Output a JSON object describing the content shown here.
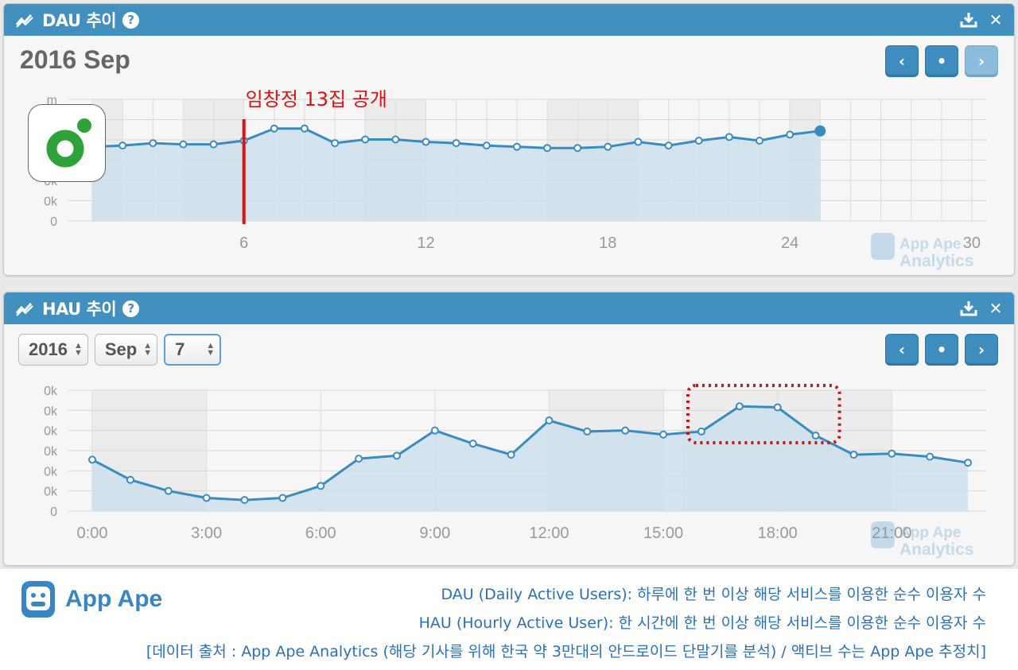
{
  "colors": {
    "header": "#4290c0",
    "line": "#3a8cc0",
    "area": "#cde0ec",
    "marker": "#dd1111",
    "note_text": "#2a70b8"
  },
  "dau_panel": {
    "title": "DAU 추이",
    "help": "?",
    "icons": [
      "trend-icon",
      "help-icon",
      "download-icon",
      "close-icon"
    ],
    "month_label": "2016 Sep",
    "nav": {
      "prev": "‹",
      "today": "•",
      "next": "›"
    },
    "watermark": {
      "line1": "App Ape",
      "line2": "Analytics"
    },
    "annotation": "임창정 13집 공개"
  },
  "hau_panel": {
    "title": "HAU 추이",
    "help": "?",
    "selects": {
      "year": "2016",
      "month": "Sep",
      "day": "7"
    },
    "nav": {
      "prev": "‹",
      "today": "•",
      "next": "›"
    },
    "watermark": {
      "line1": "App Ape",
      "line2": "Analytics"
    }
  },
  "chart_data": [
    {
      "type": "area",
      "name": "DAU",
      "x_ticks": [
        6,
        12,
        18,
        24,
        30
      ],
      "y_tick_labels": [
        "0",
        "0k",
        "0k",
        "0k",
        "0k",
        "0k",
        "m"
      ],
      "x": [
        1,
        2,
        3,
        4,
        5,
        6,
        7,
        8,
        9,
        10,
        11,
        12,
        13,
        14,
        15,
        16,
        17,
        18,
        19,
        20,
        21,
        22,
        23,
        24,
        25
      ],
      "values": [
        0.61,
        0.62,
        0.64,
        0.63,
        0.63,
        0.66,
        0.76,
        0.76,
        0.64,
        0.67,
        0.67,
        0.65,
        0.64,
        0.62,
        0.61,
        0.6,
        0.6,
        0.61,
        0.65,
        0.62,
        0.66,
        0.69,
        0.66,
        0.71,
        0.74
      ],
      "ylim": [
        0,
        1
      ],
      "xlim": [
        1,
        30.5
      ],
      "marker_x": 6,
      "marker_label": "임창정 13집 공개",
      "grid": true
    },
    {
      "type": "area",
      "name": "HAU",
      "x_tick_labels": [
        "0:00",
        "3:00",
        "6:00",
        "9:00",
        "12:00",
        "15:00",
        "18:00",
        "21:00"
      ],
      "y_tick_labels": [
        "0",
        "0k",
        "0k",
        "0k",
        "0k",
        "0k",
        "0k"
      ],
      "x": [
        0,
        1,
        2,
        3,
        4,
        5,
        6,
        7,
        8,
        9,
        10,
        11,
        12,
        13,
        14,
        15,
        16,
        17,
        18,
        19,
        20,
        21,
        22,
        23
      ],
      "values": [
        2.55,
        1.55,
        1.0,
        0.65,
        0.55,
        0.65,
        1.25,
        2.6,
        2.75,
        4.0,
        3.35,
        2.8,
        4.5,
        3.95,
        4.0,
        3.8,
        3.95,
        5.2,
        5.15,
        3.75,
        2.8,
        2.85,
        2.7,
        2.4
      ],
      "ylim": [
        0,
        6
      ],
      "xlim": [
        0,
        23.5
      ],
      "highlight_x_range": [
        16,
        19
      ],
      "grid": true
    }
  ],
  "footer": {
    "logo_text": "App Ape",
    "notes": [
      "DAU (Daily Active Users): 하루에 한 번 이상 해당 서비스를 이용한 순수 이용자 수",
      "HAU (Hourly Active User): 한 시간에 한 번 이상 해당 서비스를 이용한 순수 이용자 수",
      "[데이터 출처 : App Ape Analytics (해당 기사를 위해 한국 약 3만대의 안드로이드 단말기를 분석) / 액티브 수는 App Ape 추정치]"
    ]
  }
}
